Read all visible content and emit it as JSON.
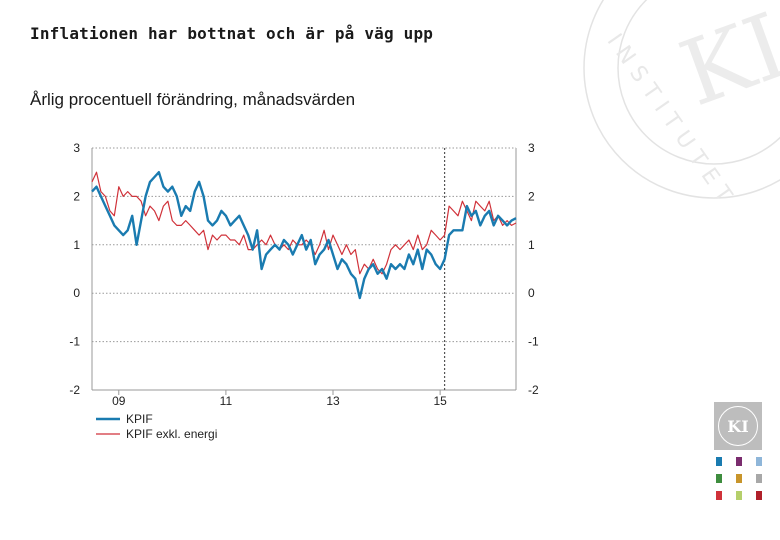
{
  "header": {
    "title": "Inflationen har bottnat och är på väg upp",
    "subtitle": "Årlig procentuell förändring, månadsvärden"
  },
  "logo": {
    "text": "INSTITUTET",
    "monogram": "KI"
  },
  "colors": {
    "kpif": "#1a7bb0",
    "kpif_exkl_energi": "#d0323a",
    "grid": "#9a9a9a",
    "swatches": [
      "#1a7bb0",
      "#7a2c6e",
      "#8fb6d9",
      "#3e8d3e",
      "#c8952b",
      "#a8a8a8",
      "#d0323a",
      "#b5cf6b",
      "#b0202a"
    ]
  },
  "chart_data": {
    "type": "line",
    "title": "",
    "xlabel": "",
    "ylabel": "",
    "ylim": [
      -2,
      3
    ],
    "yticks": [
      "-2",
      "-1",
      "0",
      "1",
      "2",
      "3"
    ],
    "yticks_right": [
      "-2",
      "-1",
      "0",
      "1",
      "2",
      "3"
    ],
    "xticks": [
      {
        "label": "09",
        "month_index": 6
      },
      {
        "label": "11",
        "month_index": 30
      },
      {
        "label": "13",
        "month_index": 54
      },
      {
        "label": "15",
        "month_index": 78
      }
    ],
    "x_start": "2008-01",
    "n_months": 96,
    "vertical_marker": {
      "month_index": 79,
      "style": "dashed"
    },
    "legend": [
      "KPIF",
      "KPIF exkl. energi"
    ],
    "series": [
      {
        "name": "KPIF",
        "values": [
          2.1,
          2.2,
          2.0,
          1.8,
          1.6,
          1.4,
          1.3,
          1.2,
          1.3,
          1.6,
          1.0,
          1.5,
          2.0,
          2.3,
          2.4,
          2.5,
          2.2,
          2.1,
          2.2,
          2.0,
          1.6,
          1.8,
          1.7,
          2.1,
          2.3,
          2.0,
          1.5,
          1.4,
          1.5,
          1.7,
          1.6,
          1.4,
          1.5,
          1.6,
          1.4,
          1.2,
          0.9,
          1.3,
          0.5,
          0.8,
          0.9,
          1.0,
          0.9,
          1.1,
          1.0,
          0.8,
          1.0,
          1.2,
          0.9,
          1.1,
          0.6,
          0.8,
          0.9,
          1.1,
          0.8,
          0.5,
          0.7,
          0.6,
          0.4,
          0.3,
          -0.1,
          0.3,
          0.5,
          0.6,
          0.4,
          0.5,
          0.3,
          0.6,
          0.5,
          0.6,
          0.5,
          0.8,
          0.6,
          0.9,
          0.5,
          0.9,
          0.8,
          0.6,
          0.5,
          0.7,
          1.2,
          1.3,
          1.3,
          1.3,
          1.8,
          1.6,
          1.7,
          1.4,
          1.6,
          1.7,
          1.4,
          1.6,
          1.5,
          1.4,
          1.5,
          1.55
        ]
      },
      {
        "name": "KPIF exkl. energi",
        "values": [
          2.3,
          2.5,
          2.1,
          2.0,
          1.7,
          1.6,
          2.2,
          2.0,
          2.1,
          2.0,
          2.0,
          1.9,
          1.6,
          1.8,
          1.7,
          1.5,
          1.8,
          1.9,
          1.5,
          1.4,
          1.4,
          1.5,
          1.4,
          1.3,
          1.2,
          1.3,
          0.9,
          1.2,
          1.1,
          1.2,
          1.2,
          1.1,
          1.1,
          1.0,
          1.2,
          0.9,
          0.9,
          1.0,
          1.1,
          1.0,
          1.2,
          1.0,
          0.9,
          1.0,
          0.9,
          1.1,
          1.0,
          1.0,
          1.1,
          1.0,
          0.8,
          1.0,
          1.3,
          0.9,
          1.2,
          1.0,
          0.8,
          1.0,
          0.8,
          0.9,
          0.4,
          0.6,
          0.5,
          0.7,
          0.5,
          0.4,
          0.6,
          0.9,
          1.0,
          0.9,
          1.0,
          1.1,
          0.9,
          1.2,
          0.9,
          1.0,
          1.3,
          1.2,
          1.1,
          1.2,
          1.8,
          1.7,
          1.6,
          1.9,
          1.7,
          1.5,
          1.9,
          1.8,
          1.7,
          1.9,
          1.5,
          1.6,
          1.4,
          1.5,
          1.4,
          1.45
        ]
      }
    ]
  }
}
